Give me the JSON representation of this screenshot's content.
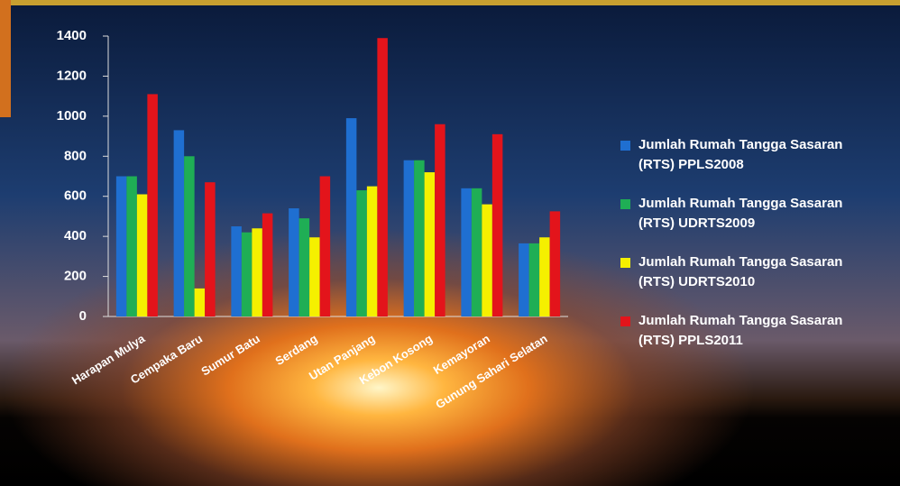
{
  "chart_data": {
    "type": "bar",
    "categories": [
      "Harapan Mulya",
      "Cempaka Baru",
      "Sumur Batu",
      "Serdang",
      "Utan Panjang",
      "Kebon Kosong",
      "Kemayoran",
      "Gunung Sahari Selatan"
    ],
    "series": [
      {
        "name": "Jumlah Rumah Tangga Sasaran (RTS) PPLS2008",
        "color": "#1f6fd1",
        "values": [
          700,
          930,
          450,
          540,
          990,
          780,
          640,
          365
        ]
      },
      {
        "name": "Jumlah Rumah Tangga Sasaran (RTS) UDRTS2009",
        "color": "#1fae55",
        "values": [
          700,
          800,
          420,
          490,
          630,
          780,
          640,
          365
        ]
      },
      {
        "name": "Jumlah Rumah Tangga Sasaran (RTS) UDRTS2010",
        "color": "#f5f000",
        "values": [
          610,
          140,
          440,
          395,
          650,
          720,
          560,
          395
        ]
      },
      {
        "name": "Jumlah Rumah Tangga Sasaran (RTS) PPLS2011",
        "color": "#e3141b",
        "values": [
          1110,
          670,
          515,
          700,
          1390,
          960,
          910,
          525
        ]
      }
    ],
    "ylim": [
      0,
      1400
    ],
    "yticks": [
      0,
      200,
      400,
      600,
      800,
      1000,
      1200,
      1400
    ],
    "legend": "right"
  }
}
